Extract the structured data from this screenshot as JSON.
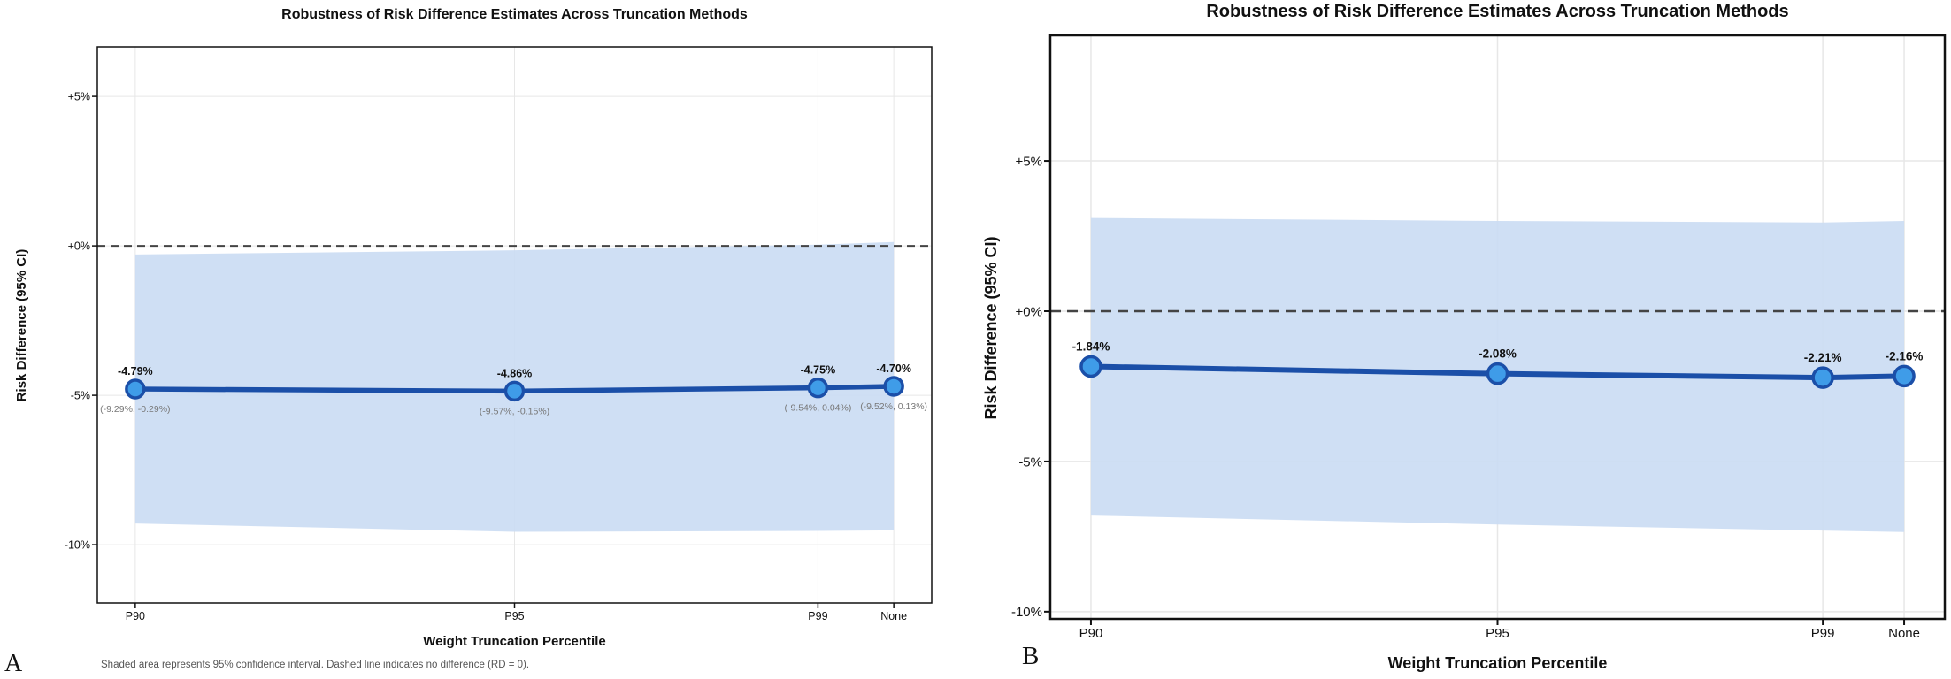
{
  "colors": {
    "line": "#1b4fa8",
    "marker_fill": "#3f9ce8",
    "band": "#cbdcf3",
    "zero_dash": "#444444",
    "grid": "#e7e7e7",
    "ci_text": "#787878",
    "axis": "#111111"
  },
  "panels": [
    {
      "letter": "A",
      "title": "Robustness of Risk Difference Estimates Across Truncation Methods",
      "ylabel": "Risk Difference (95% CI)",
      "xlabel": "Weight Truncation Percentile",
      "footnote": "Shaded area represents 95% confidence interval. Dashed line indicates no difference (RD = 0)."
    },
    {
      "letter": "B",
      "title": "Robustness of Risk Difference Estimates Across Truncation Methods",
      "ylabel": "Risk Difference (95% CI)",
      "xlabel": "Weight Truncation Percentile"
    }
  ],
  "chart_data": [
    {
      "type": "line",
      "panel": "A",
      "title": "Robustness of Risk Difference Estimates Across Truncation Methods",
      "xlabel": "Weight Truncation Percentile",
      "ylabel": "Risk Difference (95% CI)",
      "categories": [
        "P90",
        "P95",
        "P99",
        "None"
      ],
      "x": [
        90,
        95,
        99,
        100
      ],
      "series": [
        {
          "name": "Risk Difference",
          "values": [
            -4.79,
            -4.86,
            -4.75,
            -4.7
          ]
        }
      ],
      "ci_upper": [
        -0.29,
        -0.15,
        0.04,
        0.13
      ],
      "ci_lower": [
        -9.29,
        -9.57,
        -9.54,
        -9.52
      ],
      "point_labels": [
        "-4.79%",
        "-4.86%",
        "-4.75%",
        "-4.70%"
      ],
      "ci_labels": [
        "(-9.29%, -0.29%)",
        "(-9.57%, -0.15%)",
        "(-9.54%, 0.04%)",
        "(-9.52%, 0.13%)"
      ],
      "ytick_values": [
        5,
        0,
        -5,
        -10
      ],
      "ytick_labels": [
        "+5%",
        "+0%",
        "-5%",
        "-10%"
      ],
      "xlim": [
        89.5,
        100.5
      ],
      "ylim": [
        -11.95,
        6.66
      ],
      "zero_line": 0,
      "grid": true,
      "legend": "none",
      "band": "95% confidence interval"
    },
    {
      "type": "line",
      "panel": "B",
      "title": "Robustness of Risk Difference Estimates Across Truncation Methods",
      "xlabel": "Weight Truncation Percentile",
      "ylabel": "Risk Difference (95% CI)",
      "categories": [
        "P90",
        "P95",
        "P99",
        "None"
      ],
      "x": [
        90,
        95,
        99,
        100
      ],
      "series": [
        {
          "name": "Risk Difference",
          "values": [
            -1.84,
            -2.08,
            -2.21,
            -2.16
          ]
        }
      ],
      "ci_upper": [
        3.1,
        3.0,
        2.95,
        3.0
      ],
      "ci_lower": [
        -6.8,
        -7.1,
        -7.3,
        -7.35
      ],
      "point_labels": [
        "-1.84%",
        "-2.08%",
        "-2.21%",
        "-2.16%"
      ],
      "ytick_values": [
        5,
        0,
        -5,
        -10
      ],
      "ytick_labels": [
        "+5%",
        "+0%",
        "-5%",
        "-10%"
      ],
      "xlim": [
        89.5,
        100.5
      ],
      "ylim": [
        -10.24,
        9.18
      ],
      "zero_line": 0,
      "grid": true,
      "legend": "none",
      "band": "95% confidence interval"
    }
  ]
}
